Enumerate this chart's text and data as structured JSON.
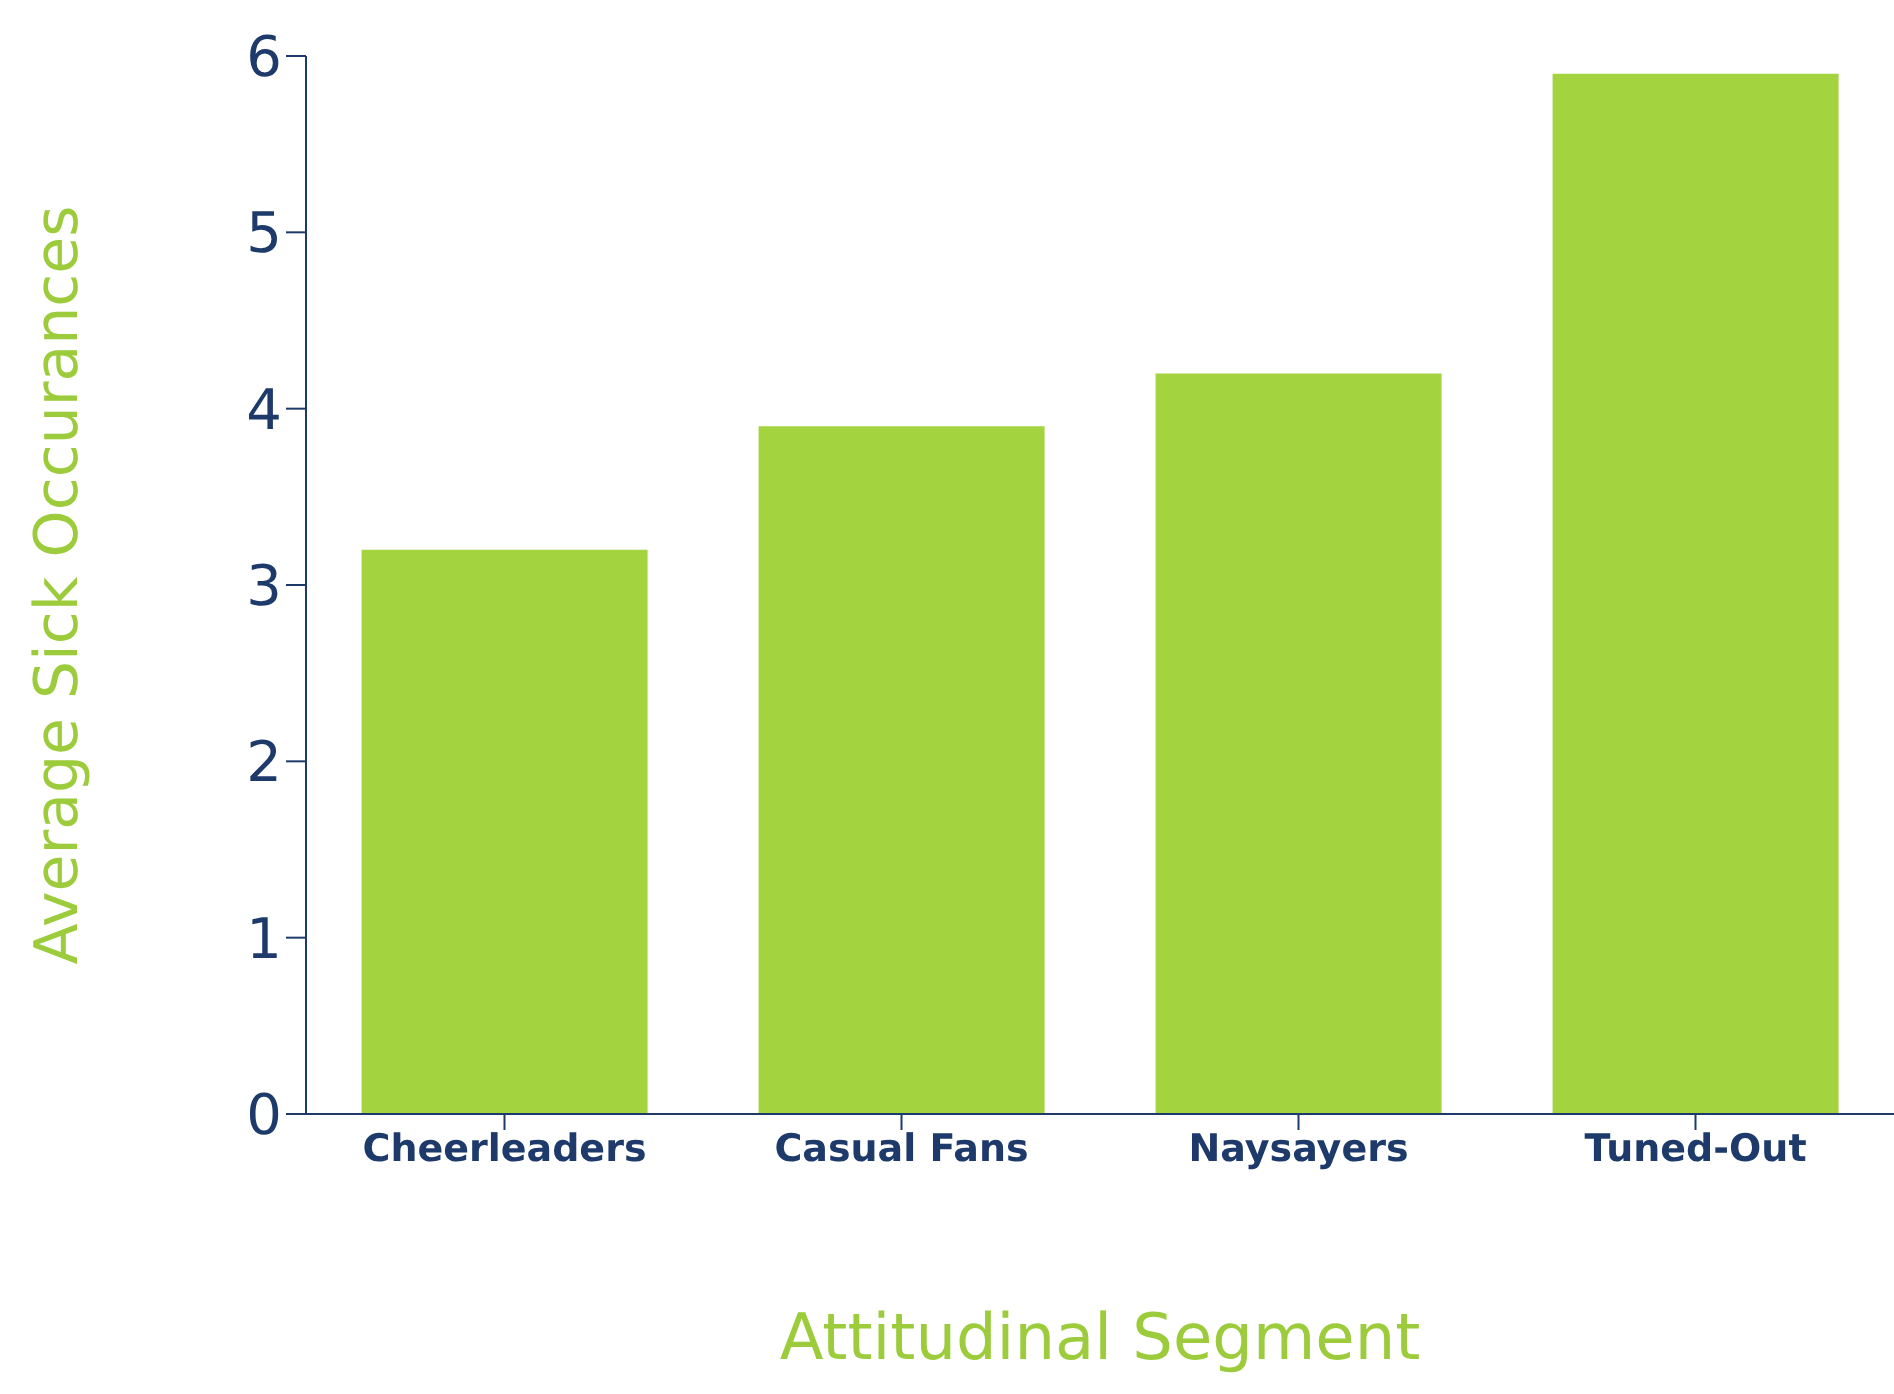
{
  "chart_data": {
    "type": "bar",
    "xlabel": "Attitudinal Segment",
    "ylabel": "Average Sick Occurances",
    "categories": [
      "Cheerleaders",
      "Casual Fans",
      "Naysayers",
      "Tuned-Out"
    ],
    "values": [
      3.2,
      3.9,
      4.2,
      5.9
    ],
    "color": "#a3d33f",
    "ylim": [
      0,
      6
    ],
    "yticks": [
      0,
      1,
      2,
      3,
      4,
      5,
      6
    ],
    "grid": false,
    "legend": false
  }
}
